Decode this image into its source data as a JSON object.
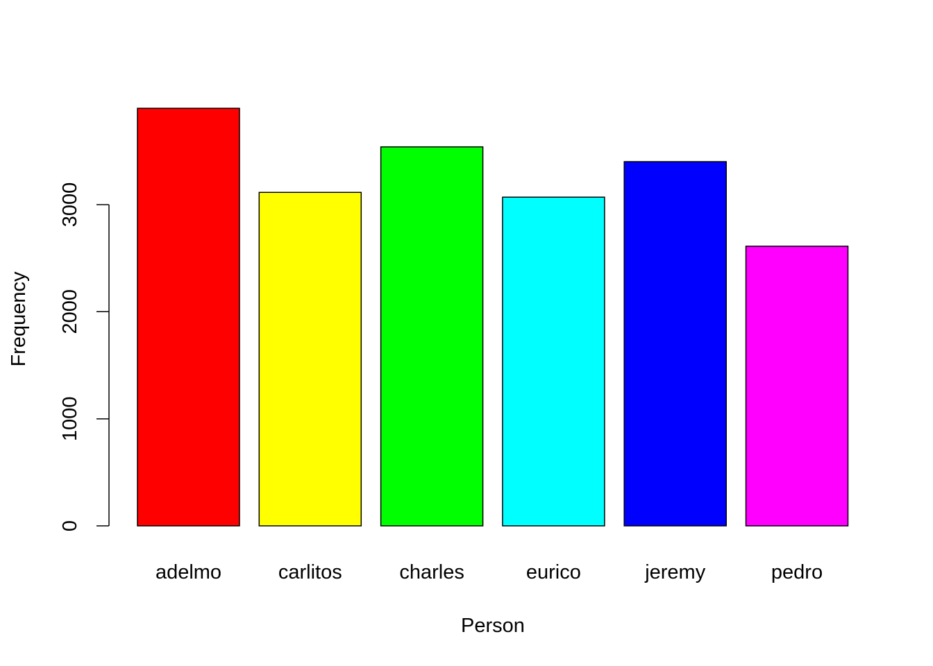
{
  "chart_data": {
    "type": "bar",
    "categories": [
      "adelmo",
      "carlitos",
      "charles",
      "eurico",
      "jeremy",
      "pedro"
    ],
    "values": [
      3900,
      3115,
      3540,
      3070,
      3402,
      2612
    ],
    "colors": [
      "#ff0000",
      "#ffff00",
      "#00ff00",
      "#00ffff",
      "#0000ff",
      "#ff00ff"
    ],
    "xlabel": "Person",
    "ylabel": "Frequency",
    "y_ticks": [
      0,
      1000,
      2000,
      3000
    ],
    "y_tick_labels": [
      "0",
      "1000",
      "2000",
      "3000"
    ],
    "ylim": [
      0,
      3900
    ],
    "grid": false,
    "legend": "none"
  }
}
